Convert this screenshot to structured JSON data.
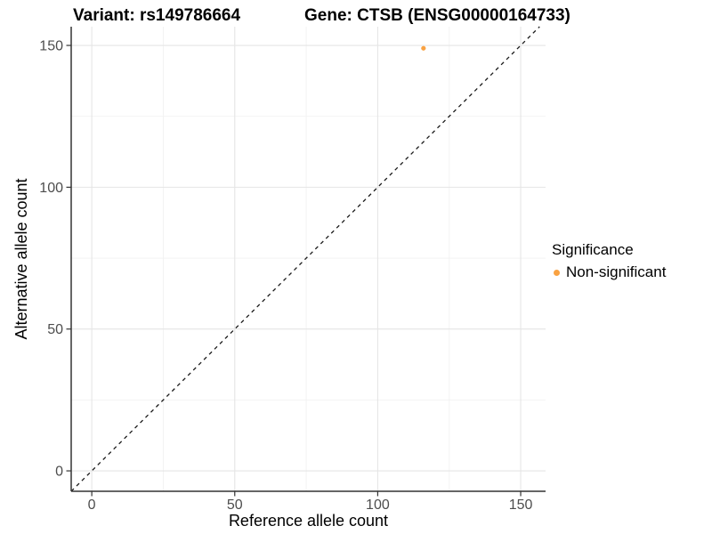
{
  "title": {
    "variant": "Variant: rs149786664",
    "gene": "Gene: CTSB (ENSG00000164733)"
  },
  "legend": {
    "title": "Significance",
    "items": [
      {
        "label": "Non-significant",
        "color": "#F9A242"
      }
    ]
  },
  "colors": {
    "background": "#FFFFFF",
    "grid_major": "#E5E5E5",
    "grid_minor": "#F2F2F2",
    "axis_line": "#333333",
    "tick_label": "#4D4D4D",
    "identity_line": "#1A1A1A",
    "point": "#F9A242"
  },
  "chart_data": {
    "type": "scatter",
    "title": "Variant: rs149786664   Gene: CTSB (ENSG00000164733)",
    "xlabel": "Reference allele count",
    "ylabel": "Alternative allele count",
    "x_ticks": [
      0,
      50,
      100,
      150
    ],
    "y_ticks": [
      0,
      50,
      100,
      150
    ],
    "x_minor": [
      25,
      75,
      125
    ],
    "y_minor": [
      25,
      75,
      125
    ],
    "xlim": [
      -7.2,
      158.7
    ],
    "ylim": [
      -7.2,
      156.6
    ],
    "grid": true,
    "legend_position": "right",
    "series": [
      {
        "name": "Non-significant",
        "color": "#F9A242",
        "points": [
          {
            "x": 116,
            "y": 149
          }
        ]
      }
    ],
    "reference_line": {
      "type": "identity",
      "slope": 1,
      "intercept": 0,
      "style": "dashed",
      "color": "#1A1A1A"
    }
  }
}
